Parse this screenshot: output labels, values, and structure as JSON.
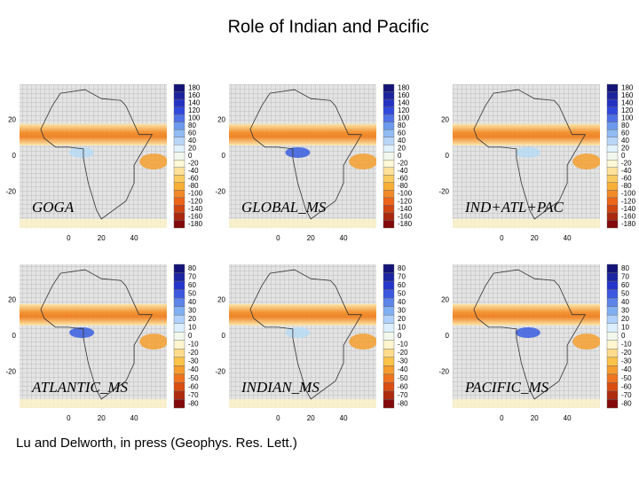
{
  "title": "Role of Indian and Pacific",
  "caption": "Lu and Delworth, in press (Geophys. Res. Lett.)",
  "panels": [
    {
      "label": "GOGA",
      "yticks": [
        20,
        0,
        -20
      ],
      "xticks": [
        0,
        20,
        40
      ],
      "colorbar": [
        180,
        160,
        140,
        120,
        100,
        80,
        60,
        40,
        20,
        0,
        -20,
        -40,
        -60,
        -80,
        -100,
        -120,
        -140,
        -160,
        -180
      ]
    },
    {
      "label": "GLOBAL_MS",
      "yticks": [
        20,
        0,
        -20
      ],
      "xticks": [
        0,
        20,
        40
      ],
      "colorbar": [
        180,
        160,
        140,
        120,
        100,
        80,
        60,
        40,
        20,
        0,
        -20,
        -40,
        -60,
        -80,
        -100,
        -120,
        -140,
        -160,
        -180
      ]
    },
    {
      "label": "IND+ATL+PAC",
      "yticks": [
        20,
        0,
        -20
      ],
      "xticks": [
        0,
        20,
        40
      ],
      "colorbar": [
        180,
        160,
        140,
        120,
        100,
        80,
        60,
        40,
        20,
        0,
        -20,
        -40,
        -60,
        -80,
        -100,
        -120,
        -140,
        -160,
        -180
      ]
    },
    {
      "label": "ATLANTIC_MS",
      "yticks": [
        20,
        0,
        -20
      ],
      "xticks": [
        0,
        20,
        40
      ],
      "colorbar": [
        80,
        70,
        60,
        50,
        40,
        30,
        20,
        10,
        0,
        -10,
        -20,
        -30,
        -40,
        -50,
        -60,
        -70,
        -80
      ]
    },
    {
      "label": "INDIAN_MS",
      "yticks": [
        20,
        0,
        -20
      ],
      "xticks": [
        0,
        20,
        40
      ],
      "colorbar": [
        80,
        70,
        60,
        50,
        40,
        30,
        20,
        10,
        0,
        -10,
        -20,
        -30,
        -40,
        -50,
        -60,
        -70,
        -80
      ]
    },
    {
      "label": "PACIFIC_MS",
      "yticks": [
        20,
        0,
        -20
      ],
      "xticks": [
        0,
        20,
        40
      ],
      "colorbar": [
        80,
        70,
        60,
        50,
        40,
        30,
        20,
        10,
        0,
        -10,
        -20,
        -30,
        -40,
        -50,
        -60,
        -70,
        -80
      ]
    }
  ]
}
